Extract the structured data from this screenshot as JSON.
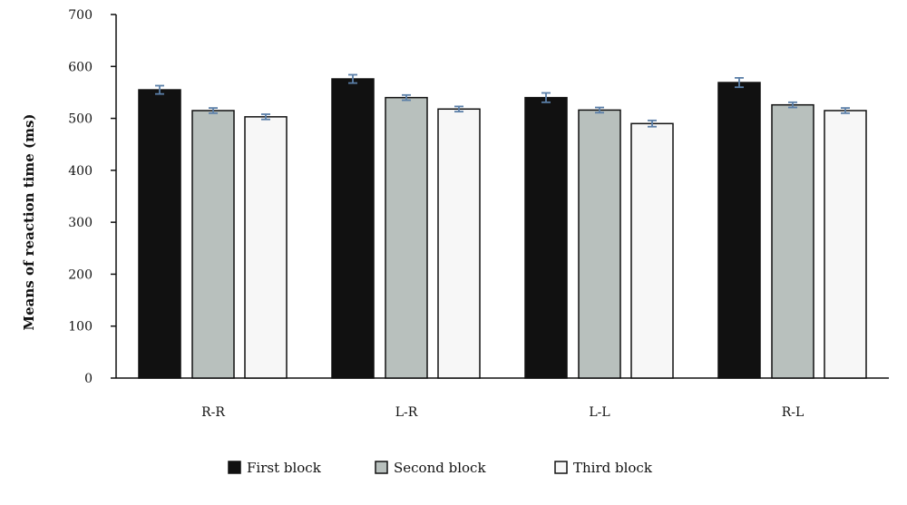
{
  "chart_data": {
    "type": "bar",
    "categories": [
      "R-R",
      "L-R",
      "L-L",
      "R-L"
    ],
    "ylabel": "Means of reaction time (ms)",
    "xlabel": "",
    "ylim": [
      0,
      700
    ],
    "yticks": [
      0,
      100,
      200,
      300,
      400,
      500,
      600,
      700
    ],
    "grid": false,
    "legend": "bottom",
    "series": [
      {
        "name": "First block",
        "color": "#111111",
        "values": [
          555,
          576,
          540,
          569
        ],
        "error": [
          8,
          8,
          9,
          9
        ]
      },
      {
        "name": "Second block",
        "color": "#b8c0bd",
        "values": [
          515,
          540,
          516,
          526
        ],
        "error": [
          5,
          5,
          5,
          5
        ]
      },
      {
        "name": "Third block",
        "color": "#f7f7f7",
        "values": [
          503,
          518,
          490,
          515
        ],
        "error": [
          5,
          5,
          6,
          5
        ]
      }
    ],
    "error_bar_color": "#5b7fa8"
  }
}
